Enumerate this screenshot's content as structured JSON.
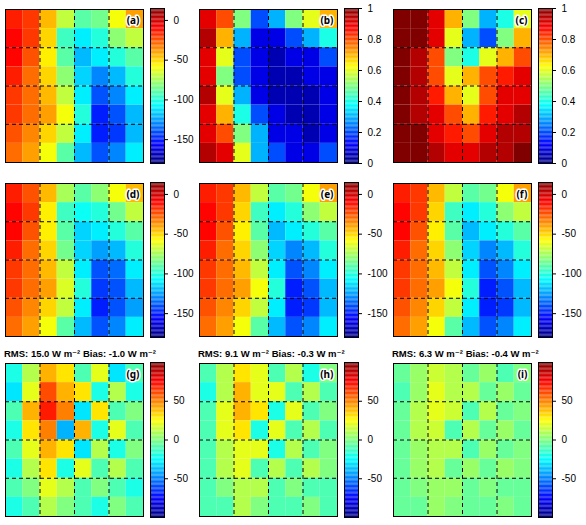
{
  "chart_data": [
    {
      "type": "heatmap",
      "label": "(a)",
      "grid": true,
      "tick_labels": false,
      "colorbar": {
        "lim": [
          -180,
          15
        ],
        "ticks": [
          0,
          -50,
          -100,
          -150
        ]
      },
      "values": [
        [
          -15,
          -20,
          -45,
          -70,
          -90,
          -85,
          -60,
          -40
        ],
        [
          -10,
          -20,
          -50,
          -95,
          -110,
          -100,
          -80,
          -70
        ],
        [
          -10,
          -25,
          -55,
          -90,
          -120,
          -110,
          -100,
          -90
        ],
        [
          -15,
          -30,
          -50,
          -80,
          -115,
          -130,
          -120,
          -100
        ],
        [
          -20,
          -30,
          -45,
          -70,
          -110,
          -140,
          -130,
          -110
        ],
        [
          -20,
          -30,
          -40,
          -60,
          -100,
          -150,
          -140,
          -120
        ],
        [
          -25,
          -35,
          -50,
          -70,
          -110,
          -150,
          -145,
          -120
        ],
        [
          -30,
          -40,
          -60,
          -90,
          -120,
          -140,
          -130,
          -110
        ]
      ]
    },
    {
      "type": "heatmap",
      "label": "(b)",
      "grid": true,
      "tick_labels": false,
      "colorbar": {
        "lim": [
          0,
          1
        ],
        "ticks": [
          0,
          0.2,
          0.4,
          0.6,
          0.8,
          1
        ]
      },
      "values": [
        [
          0.9,
          0.8,
          0.5,
          0.2,
          0.3,
          0.5,
          0.6,
          0.7
        ],
        [
          0.95,
          0.7,
          0.3,
          0.1,
          0.1,
          0.2,
          0.3,
          0.4
        ],
        [
          0.9,
          0.6,
          0.2,
          0.1,
          0.05,
          0.1,
          0.1,
          0.2
        ],
        [
          0.9,
          0.5,
          0.2,
          0.1,
          0.05,
          0.05,
          0.1,
          0.1
        ],
        [
          0.95,
          0.6,
          0.3,
          0.1,
          0.05,
          0.05,
          0.05,
          0.1
        ],
        [
          0.9,
          0.7,
          0.4,
          0.2,
          0.1,
          0.05,
          0.05,
          0.1
        ],
        [
          0.9,
          0.8,
          0.5,
          0.3,
          0.1,
          0.1,
          0.05,
          0.1
        ],
        [
          0.95,
          0.9,
          0.6,
          0.3,
          0.2,
          0.1,
          0.1,
          0.2
        ]
      ]
    },
    {
      "type": "heatmap",
      "label": "(c)",
      "grid": true,
      "tick_labels": false,
      "colorbar": {
        "lim": [
          0,
          1
        ],
        "ticks": [
          0,
          0.2,
          0.4,
          0.6,
          0.8,
          1
        ]
      },
      "values": [
        [
          1,
          1,
          0.9,
          0.7,
          0.5,
          0.3,
          0.4,
          0.6
        ],
        [
          1,
          1,
          0.9,
          0.6,
          0.3,
          0.2,
          0.5,
          0.7
        ],
        [
          1,
          0.95,
          0.8,
          0.5,
          0.4,
          0.6,
          0.7,
          0.8
        ],
        [
          1,
          0.95,
          0.8,
          0.6,
          0.7,
          0.8,
          0.85,
          0.9
        ],
        [
          1,
          0.95,
          0.85,
          0.7,
          0.6,
          0.8,
          0.9,
          0.9
        ],
        [
          1,
          0.95,
          0.9,
          0.8,
          0.7,
          0.85,
          0.9,
          0.95
        ],
        [
          1,
          1,
          0.9,
          0.85,
          0.8,
          0.9,
          0.95,
          0.95
        ],
        [
          1,
          1,
          0.95,
          0.9,
          0.9,
          0.95,
          0.95,
          1
        ]
      ]
    },
    {
      "type": "heatmap",
      "label": "(d)",
      "grid": true,
      "tick_labels": false,
      "colorbar": {
        "lim": [
          -180,
          15
        ],
        "ticks": [
          0,
          -50,
          -100,
          -150
        ]
      },
      "values": [
        [
          -15,
          -25,
          -45,
          -75,
          -90,
          -80,
          -60,
          -45
        ],
        [
          -10,
          -20,
          -55,
          -95,
          -105,
          -100,
          -85,
          -70
        ],
        [
          -10,
          -25,
          -55,
          -90,
          -115,
          -110,
          -100,
          -90
        ],
        [
          -15,
          -30,
          -50,
          -85,
          -115,
          -125,
          -120,
          -100
        ],
        [
          -20,
          -30,
          -45,
          -70,
          -110,
          -140,
          -135,
          -110
        ],
        [
          -20,
          -30,
          -40,
          -65,
          -100,
          -145,
          -140,
          -120
        ],
        [
          -25,
          -35,
          -50,
          -70,
          -110,
          -150,
          -140,
          -125
        ],
        [
          -30,
          -40,
          -60,
          -90,
          -120,
          -140,
          -130,
          -110
        ]
      ]
    },
    {
      "type": "heatmap",
      "label": "(e)",
      "grid": true,
      "tick_labels": false,
      "colorbar": {
        "lim": [
          -180,
          15
        ],
        "ticks": [
          0,
          -50,
          -100,
          -150
        ]
      },
      "values": [
        [
          -15,
          -20,
          -45,
          -70,
          -90,
          -85,
          -60,
          -40
        ],
        [
          -10,
          -20,
          -50,
          -95,
          -110,
          -100,
          -80,
          -70
        ],
        [
          -10,
          -25,
          -55,
          -90,
          -120,
          -110,
          -100,
          -90
        ],
        [
          -15,
          -30,
          -50,
          -80,
          -115,
          -130,
          -120,
          -100
        ],
        [
          -20,
          -30,
          -45,
          -70,
          -110,
          -140,
          -130,
          -110
        ],
        [
          -20,
          -30,
          -40,
          -60,
          -100,
          -150,
          -140,
          -120
        ],
        [
          -25,
          -35,
          -50,
          -70,
          -110,
          -150,
          -145,
          -120
        ],
        [
          -30,
          -40,
          -60,
          -90,
          -120,
          -140,
          -130,
          -110
        ]
      ]
    },
    {
      "type": "heatmap",
      "label": "(f)",
      "grid": true,
      "tick_labels": false,
      "colorbar": {
        "lim": [
          -180,
          15
        ],
        "ticks": [
          0,
          -50,
          -100,
          -150
        ]
      },
      "values": [
        [
          -15,
          -20,
          -45,
          -70,
          -90,
          -85,
          -60,
          -40
        ],
        [
          -10,
          -20,
          -50,
          -95,
          -110,
          -100,
          -80,
          -70
        ],
        [
          -10,
          -25,
          -55,
          -90,
          -120,
          -110,
          -100,
          -90
        ],
        [
          -15,
          -30,
          -50,
          -80,
          -115,
          -130,
          -120,
          -100
        ],
        [
          -20,
          -30,
          -45,
          -70,
          -110,
          -140,
          -130,
          -110
        ],
        [
          -20,
          -30,
          -40,
          -60,
          -100,
          -150,
          -140,
          -120
        ],
        [
          -25,
          -35,
          -50,
          -70,
          -110,
          -150,
          -145,
          -120
        ],
        [
          -30,
          -40,
          -60,
          -90,
          -120,
          -140,
          -130,
          -110
        ]
      ]
    },
    {
      "type": "heatmap",
      "label": "(g)",
      "title": "RMS: 15.0 W m⁻² Bias: -1.0 W m⁻²",
      "grid": true,
      "tick_labels": false,
      "colorbar": {
        "lim": [
          -100,
          100
        ],
        "ticks": [
          50,
          0,
          -50
        ]
      },
      "values": [
        [
          -20,
          10,
          40,
          30,
          -10,
          20,
          -30,
          -10
        ],
        [
          -30,
          20,
          60,
          40,
          30,
          -20,
          10,
          -20
        ],
        [
          -10,
          40,
          70,
          50,
          -30,
          30,
          -10,
          0
        ],
        [
          -20,
          30,
          50,
          -40,
          40,
          -20,
          20,
          -10
        ],
        [
          -10,
          20,
          40,
          30,
          -30,
          10,
          -20,
          0
        ],
        [
          -20,
          10,
          30,
          -20,
          20,
          -10,
          10,
          -10
        ],
        [
          -10,
          0,
          20,
          10,
          -10,
          0,
          -10,
          -20
        ],
        [
          -20,
          -10,
          10,
          0,
          -10,
          -20,
          0,
          -10
        ]
      ]
    },
    {
      "type": "heatmap",
      "label": "(h)",
      "title": "RMS: 9.1 W m⁻² Bias: -0.3 W m⁻²",
      "grid": true,
      "tick_labels": false,
      "colorbar": {
        "lim": [
          -100,
          100
        ],
        "ticks": [
          50,
          0,
          -50
        ]
      },
      "values": [
        [
          -10,
          10,
          30,
          20,
          -10,
          10,
          -20,
          0
        ],
        [
          -20,
          10,
          40,
          20,
          20,
          -10,
          10,
          -10
        ],
        [
          -10,
          20,
          40,
          30,
          -20,
          20,
          -10,
          0
        ],
        [
          -10,
          20,
          30,
          -20,
          20,
          -10,
          10,
          -10
        ],
        [
          -10,
          10,
          20,
          20,
          -20,
          10,
          -10,
          0
        ],
        [
          -10,
          10,
          20,
          -10,
          10,
          -10,
          10,
          0
        ],
        [
          -10,
          0,
          10,
          10,
          -10,
          0,
          -10,
          -10
        ],
        [
          -10,
          -10,
          10,
          0,
          -10,
          -10,
          0,
          -10
        ]
      ]
    },
    {
      "type": "heatmap",
      "label": "(i)",
      "title": "RMS: 6.3 W m⁻² Bias: -0.4 W m⁻²",
      "grid": true,
      "tick_labels": false,
      "colorbar": {
        "lim": [
          -100,
          100
        ],
        "ticks": [
          50,
          0,
          -50
        ]
      },
      "values": [
        [
          -5,
          5,
          15,
          10,
          -5,
          5,
          -10,
          0
        ],
        [
          -10,
          5,
          20,
          10,
          10,
          -5,
          5,
          -5
        ],
        [
          -5,
          10,
          20,
          15,
          -10,
          10,
          -5,
          0
        ],
        [
          -5,
          10,
          15,
          -10,
          10,
          -5,
          5,
          -5
        ],
        [
          -5,
          5,
          10,
          10,
          -10,
          5,
          -5,
          0
        ],
        [
          -5,
          5,
          10,
          -5,
          5,
          -5,
          5,
          0
        ],
        [
          -5,
          0,
          5,
          5,
          -5,
          0,
          -5,
          -5
        ],
        [
          -5,
          -5,
          5,
          0,
          -5,
          -5,
          0,
          -5
        ]
      ]
    }
  ]
}
